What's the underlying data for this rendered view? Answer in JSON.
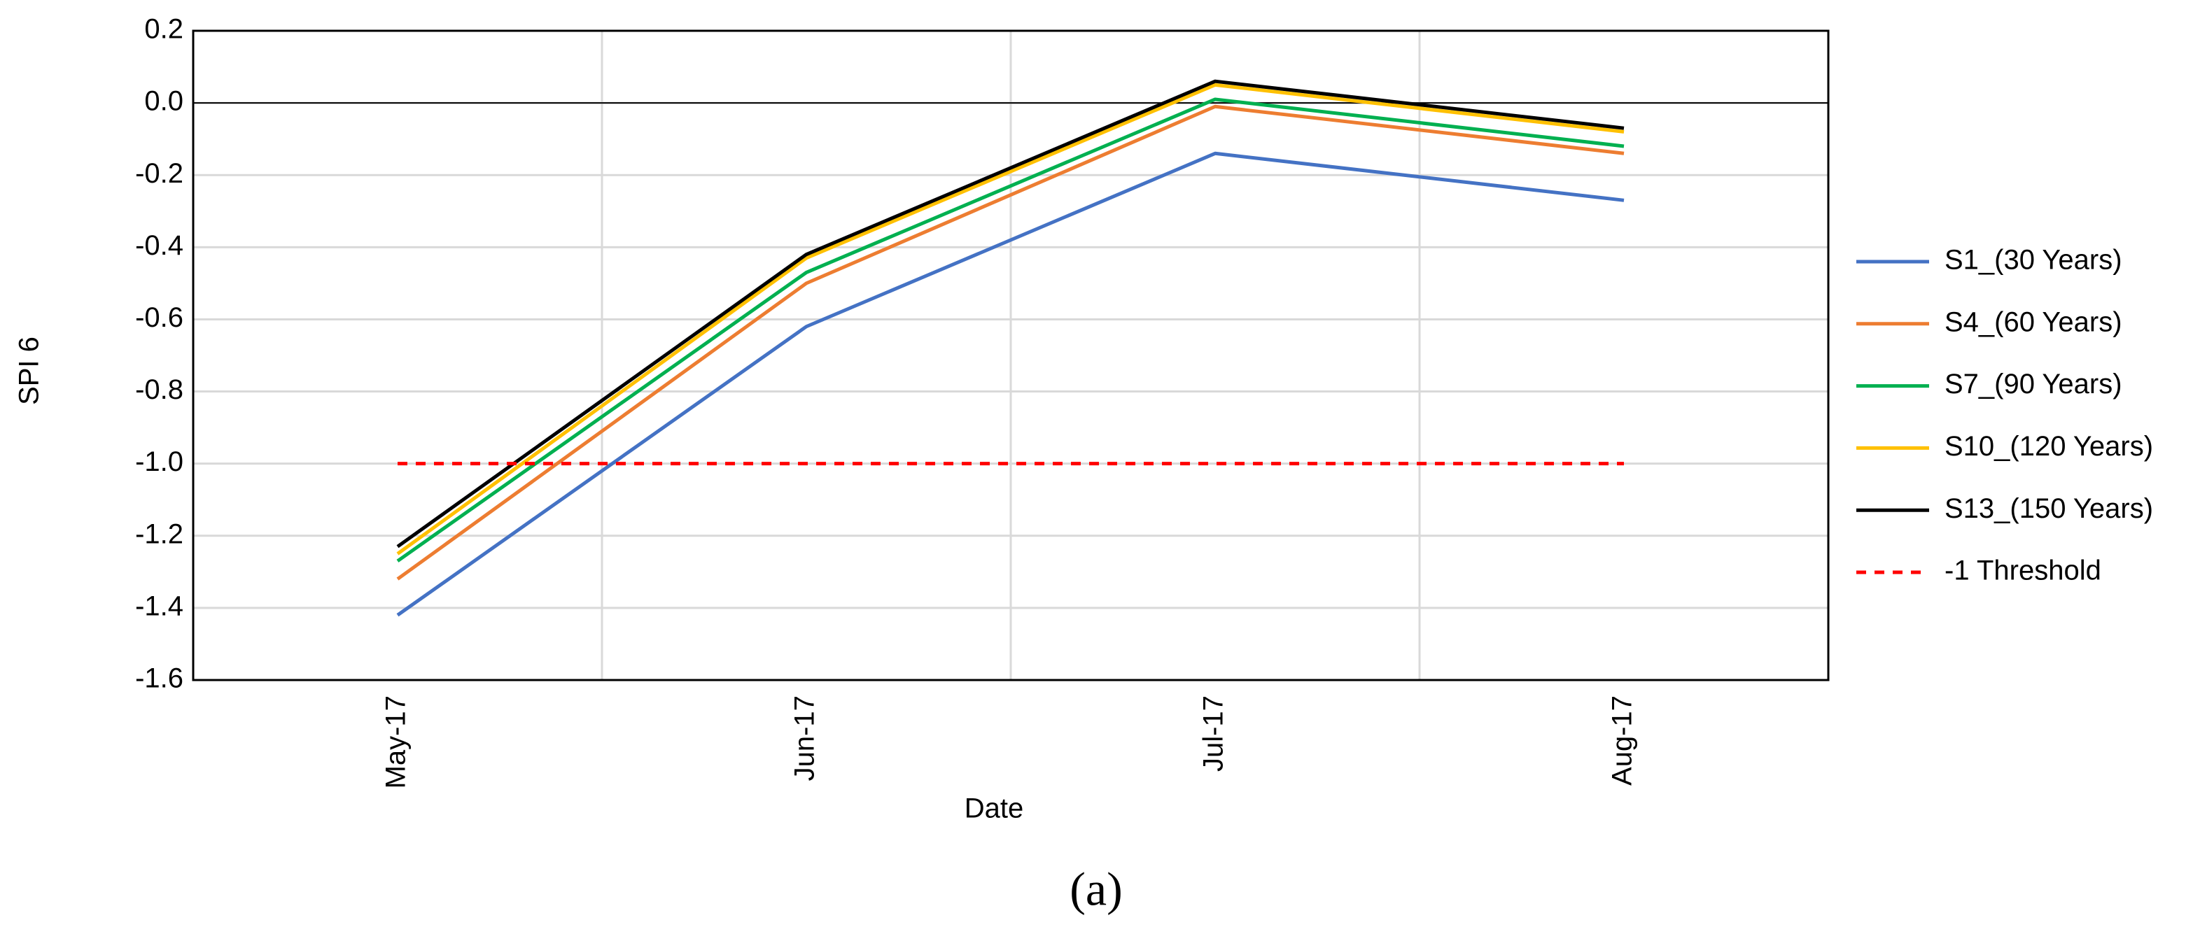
{
  "chart_data": {
    "type": "line",
    "caption": "(a)",
    "x_label": "Date",
    "y_label": "SPI 6",
    "categories": [
      "May-17",
      "Jun-17",
      "Jul-17",
      "Aug-17"
    ],
    "series": [
      {
        "name": "S1_(30 Years)",
        "color": "#4472c4",
        "values": [
          -1.42,
          -0.62,
          -0.14,
          -0.27
        ]
      },
      {
        "name": "S4_(60 Years)",
        "color": "#ed7d31",
        "values": [
          -1.32,
          -0.5,
          -0.01,
          -0.14
        ]
      },
      {
        "name": "S7_(90 Years)",
        "color": "#00b050",
        "values": [
          -1.27,
          -0.47,
          0.01,
          -0.12
        ]
      },
      {
        "name": "S10_(120 Years)",
        "color": "#ffc000",
        "values": [
          -1.25,
          -0.43,
          0.05,
          -0.08
        ]
      },
      {
        "name": "S13_(150 Years)",
        "color": "#000000",
        "values": [
          -1.23,
          -0.42,
          0.06,
          -0.07
        ]
      },
      {
        "name": "-1 Threshold",
        "color": "#ff0000",
        "dashed": true,
        "values": [
          -1,
          -1,
          -1,
          -1
        ]
      }
    ],
    "ylim": [
      -1.6,
      0.2
    ],
    "yticks": [
      0.2,
      {
        "value": 0,
        "label": "0.0"
      },
      -0.2,
      -0.4,
      -0.6,
      -0.8,
      {
        "value": -1,
        "label": "-1.0"
      },
      -1.2,
      -1.4,
      -1.6
    ],
    "grid": true,
    "zero_line": true,
    "legend": "right"
  }
}
